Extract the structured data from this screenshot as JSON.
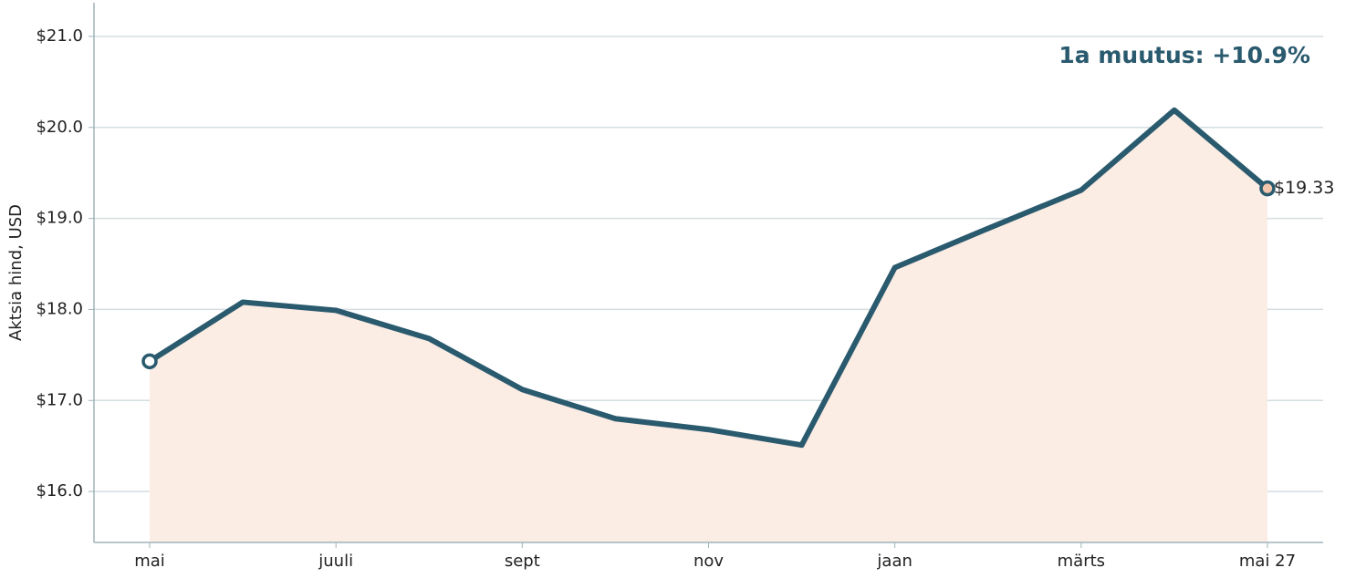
{
  "chart_data": {
    "type": "area-line",
    "y_label": "Aktsia hind, USD",
    "annotation": "1a muutus: +10.9%",
    "categories": [
      "mai",
      null,
      "juuli",
      null,
      "sept",
      null,
      "nov",
      null,
      "jaan",
      null,
      "märts",
      null,
      "mai 27"
    ],
    "values": [
      17.43,
      18.08,
      17.99,
      17.68,
      17.12,
      16.8,
      16.68,
      16.51,
      18.46,
      18.89,
      19.31,
      20.19,
      19.33
    ],
    "value_labels": [
      null,
      null,
      null,
      null,
      null,
      null,
      null,
      null,
      null,
      null,
      null,
      null,
      "$19.33"
    ],
    "color": "#2a5a6e",
    "fill_color": "#fbece4",
    "end_marker_color": "#f4c6ae",
    "ylim": [
      15.44,
      21.37
    ],
    "yticks": [
      {
        "value": 16,
        "label": "$16.0"
      },
      {
        "value": 17,
        "label": "$17.0"
      },
      {
        "value": 18,
        "label": "$18.0"
      },
      {
        "value": 19,
        "label": "$19.0"
      },
      {
        "value": 20,
        "label": "$20.0"
      },
      {
        "value": 21,
        "label": "$21.0"
      }
    ],
    "grid": true
  }
}
